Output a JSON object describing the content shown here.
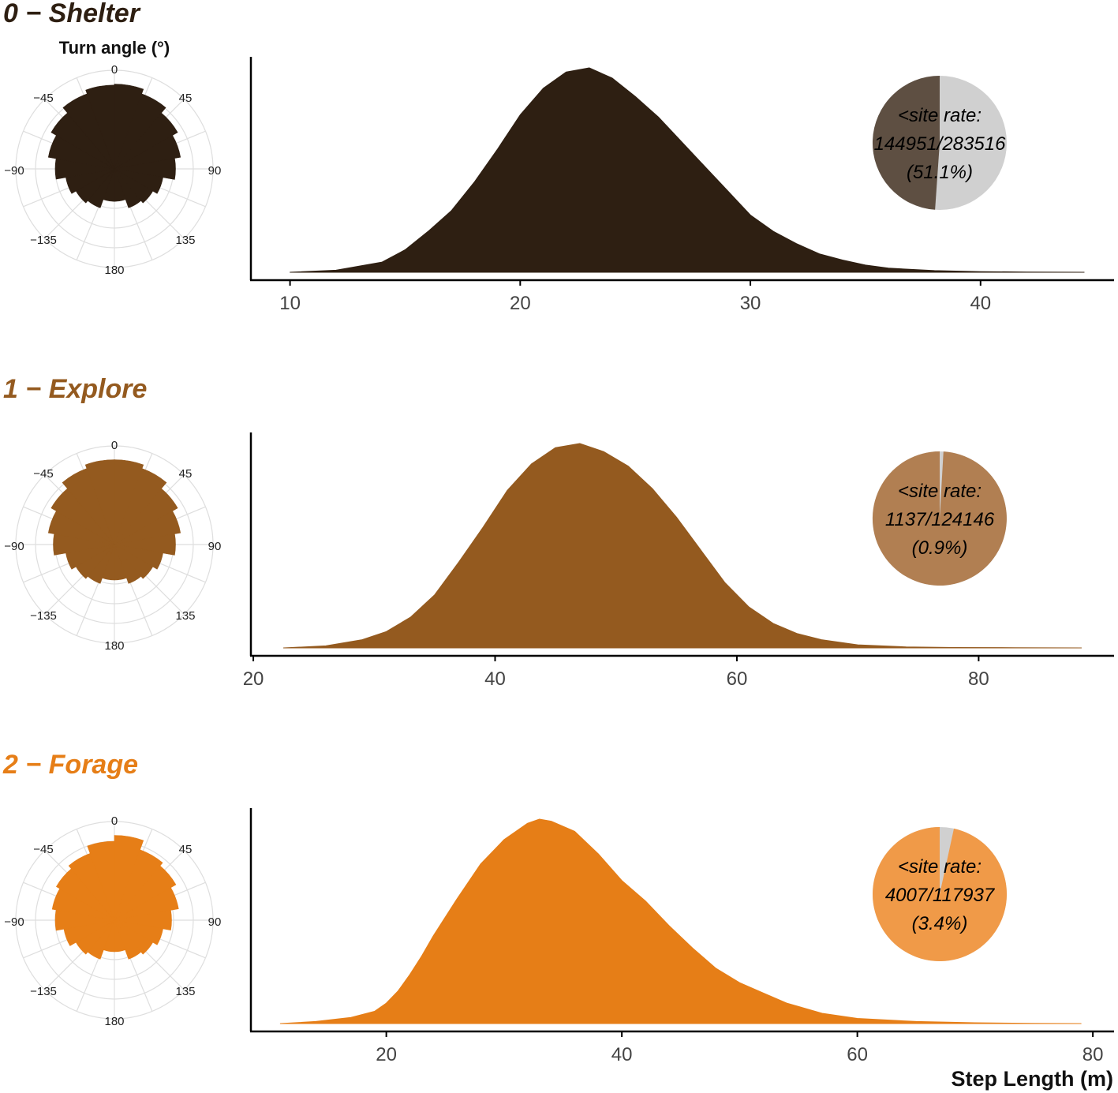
{
  "chart_data": [
    {
      "type": "area",
      "title": "0 − Shelter",
      "color": "#2e1f12",
      "pie_color": "#5e4f42",
      "xlim": [
        8.3,
        45.8
      ],
      "xticks": [
        "10",
        "20",
        "30",
        "40"
      ],
      "density": {
        "x": [
          10,
          12,
          14,
          15,
          16,
          17,
          18,
          19,
          20,
          21,
          22,
          23,
          24,
          25,
          26,
          27,
          28,
          29,
          30,
          31,
          32,
          33,
          34,
          35,
          36,
          38,
          40,
          42,
          44.5
        ],
        "y": [
          0.0,
          0.01,
          0.05,
          0.11,
          0.2,
          0.3,
          0.44,
          0.6,
          0.77,
          0.9,
          0.98,
          1.0,
          0.95,
          0.86,
          0.76,
          0.64,
          0.52,
          0.4,
          0.28,
          0.2,
          0.14,
          0.09,
          0.06,
          0.035,
          0.02,
          0.008,
          0.003,
          0.001,
          0.0
        ]
      },
      "turn_angle": {
        "title": "Turn angle (°)",
        "bins_deg": [
          -170,
          -150,
          -130,
          -110,
          -90,
          -70,
          -50,
          -30,
          -10,
          10,
          30,
          50,
          70,
          90,
          110,
          130,
          150,
          170
        ],
        "radius_frac": [
          0.33,
          0.42,
          0.45,
          0.5,
          0.6,
          0.68,
          0.74,
          0.81,
          0.85,
          0.86,
          0.81,
          0.74,
          0.68,
          0.62,
          0.5,
          0.45,
          0.42,
          0.33
        ],
        "ticks": [
          "0",
          "45",
          "90",
          "135",
          "180",
          "−135",
          "−90",
          "−45"
        ]
      },
      "pie": {
        "label_line1": "<site rate:",
        "label_line2": "144951/283516",
        "label_line3": "(51.1%)",
        "fraction": 0.511,
        "rest_color": "#d0d0d0"
      }
    },
    {
      "type": "area",
      "title": "1 − Explore",
      "color": "#945a1f",
      "pie_color": "#b17f52",
      "xlim": [
        19.8,
        91.2
      ],
      "xticks": [
        "20",
        "40",
        "60",
        "80"
      ],
      "density": {
        "x": [
          22.5,
          26,
          29,
          31,
          33,
          35,
          37,
          39,
          41,
          43,
          45,
          47,
          49,
          51,
          53,
          55,
          57,
          59,
          61,
          63,
          65,
          67,
          70,
          74,
          78,
          83,
          88.5
        ],
        "y": [
          0.0,
          0.01,
          0.04,
          0.08,
          0.15,
          0.26,
          0.42,
          0.59,
          0.77,
          0.9,
          0.98,
          1.0,
          0.96,
          0.89,
          0.78,
          0.64,
          0.48,
          0.32,
          0.2,
          0.12,
          0.07,
          0.04,
          0.015,
          0.005,
          0.002,
          0.001,
          0.0
        ]
      },
      "turn_angle": {
        "bins_deg": [
          -170,
          -150,
          -130,
          -110,
          -90,
          -70,
          -50,
          -30,
          -10,
          10,
          30,
          50,
          70,
          90,
          110,
          130,
          150,
          170
        ],
        "radius_frac": [
          0.36,
          0.42,
          0.45,
          0.5,
          0.62,
          0.68,
          0.74,
          0.82,
          0.86,
          0.86,
          0.82,
          0.74,
          0.68,
          0.62,
          0.5,
          0.45,
          0.42,
          0.36
        ],
        "ticks": [
          "0",
          "45",
          "90",
          "135",
          "180",
          "−135",
          "−90",
          "−45"
        ]
      },
      "pie": {
        "label_line1": "<site rate:",
        "label_line2": "1137/124146",
        "label_line3": "(0.9%)",
        "fraction": 0.009,
        "rest_color": "#d0d0d0"
      }
    },
    {
      "type": "area",
      "title": "2 − Forage",
      "color": "#e67e17",
      "pie_color": "#f09a48",
      "xlim": [
        8.5,
        81.8
      ],
      "xticks": [
        "20",
        "40",
        "60",
        "80"
      ],
      "density": {
        "x": [
          11,
          14,
          17,
          19,
          20,
          21,
          22,
          23,
          24,
          26,
          28,
          30,
          32,
          33,
          34,
          36,
          38,
          40,
          42,
          44,
          46,
          48,
          50,
          52,
          54,
          57,
          60,
          65,
          70,
          75,
          79
        ],
        "y": [
          0.0,
          0.01,
          0.03,
          0.06,
          0.1,
          0.16,
          0.24,
          0.33,
          0.43,
          0.61,
          0.78,
          0.9,
          0.98,
          1.0,
          0.99,
          0.94,
          0.83,
          0.7,
          0.6,
          0.48,
          0.37,
          0.27,
          0.2,
          0.15,
          0.1,
          0.05,
          0.025,
          0.01,
          0.004,
          0.001,
          0.0
        ]
      },
      "turn_angle": {
        "bins_deg": [
          -170,
          -150,
          -130,
          -110,
          -90,
          -70,
          -50,
          -30,
          -10,
          10,
          30,
          50,
          70,
          90,
          110,
          130,
          150,
          170
        ],
        "radius_frac": [
          0.32,
          0.42,
          0.45,
          0.52,
          0.6,
          0.64,
          0.68,
          0.72,
          0.8,
          0.86,
          0.76,
          0.72,
          0.66,
          0.58,
          0.5,
          0.45,
          0.42,
          0.32
        ],
        "ticks": [
          "0",
          "45",
          "90",
          "135",
          "180",
          "−135",
          "−90",
          "−45"
        ]
      },
      "pie": {
        "label_line1": "<site rate:",
        "label_line2": "4007/117937",
        "label_line3": "(3.4%)",
        "fraction": 0.034,
        "rest_color": "#d0d0d0"
      }
    }
  ],
  "xlabel": "Step Length (m)"
}
